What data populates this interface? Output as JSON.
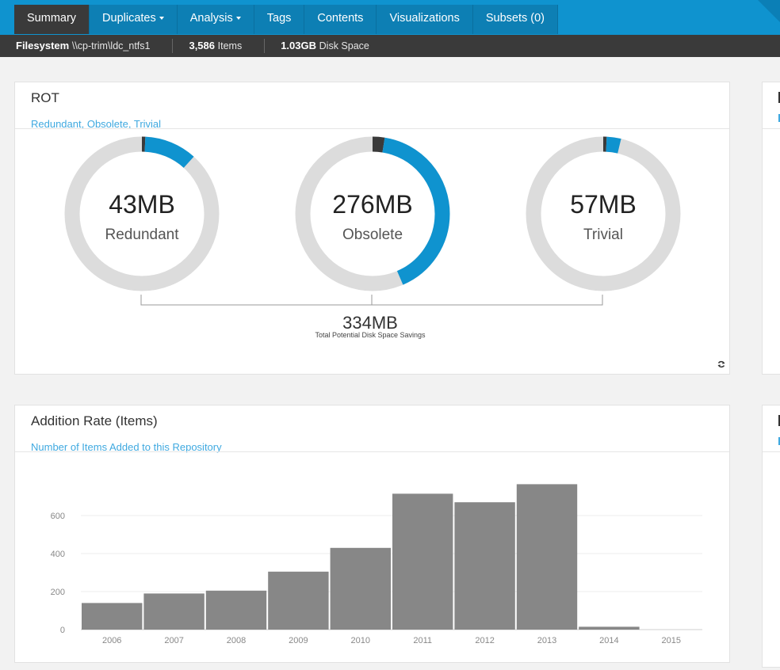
{
  "nav": {
    "tabs": [
      {
        "label": "Summary",
        "active": true,
        "dropdown": false
      },
      {
        "label": "Duplicates",
        "active": false,
        "dropdown": true
      },
      {
        "label": "Analysis",
        "active": false,
        "dropdown": true
      },
      {
        "label": "Tags",
        "active": false,
        "dropdown": false
      },
      {
        "label": "Contents",
        "active": false,
        "dropdown": false
      },
      {
        "label": "Visualizations",
        "active": false,
        "dropdown": false
      },
      {
        "label": "Subsets (0)",
        "active": false,
        "dropdown": false
      }
    ]
  },
  "infobar": {
    "filesystem_label": "Filesystem",
    "filesystem_path": "\\\\cp-trim\\ldc_ntfs1",
    "items_count": "3,586",
    "items_label": "Items",
    "disk_value": "1.03GB",
    "disk_label": "Disk Space"
  },
  "rot": {
    "title": "ROT",
    "subtitle": "Redundant, Obsolete, Trivial",
    "donuts": [
      {
        "value": "43MB",
        "label": "Redundant",
        "fraction": 0.11
      },
      {
        "value": "276MB",
        "label": "Obsolete",
        "fraction": 0.41
      },
      {
        "value": "57MB",
        "label": "Trivial",
        "fraction": 0.03
      }
    ],
    "total_value": "334MB",
    "total_label": "Total Potential Disk Space Savings",
    "refresh_icon": "refresh-icon"
  },
  "addition": {
    "title": "Addition Rate (Items)",
    "subtitle": "Number of Items Added to this Repository"
  },
  "colors": {
    "accent": "#0f93cf",
    "donut_fill": "#0f93cf",
    "donut_track": "#dcdcdc",
    "bar": "#878787",
    "dark": "#3a3a3a"
  },
  "chart_data": {
    "type": "bar",
    "categories": [
      "2006",
      "2007",
      "2008",
      "2009",
      "2010",
      "2011",
      "2012",
      "2013",
      "2014",
      "2015"
    ],
    "values": [
      140,
      190,
      205,
      305,
      430,
      715,
      670,
      765,
      15,
      0
    ],
    "ylim": [
      0,
      800
    ],
    "yticks": [
      0,
      200,
      400,
      600
    ],
    "grid": true
  }
}
